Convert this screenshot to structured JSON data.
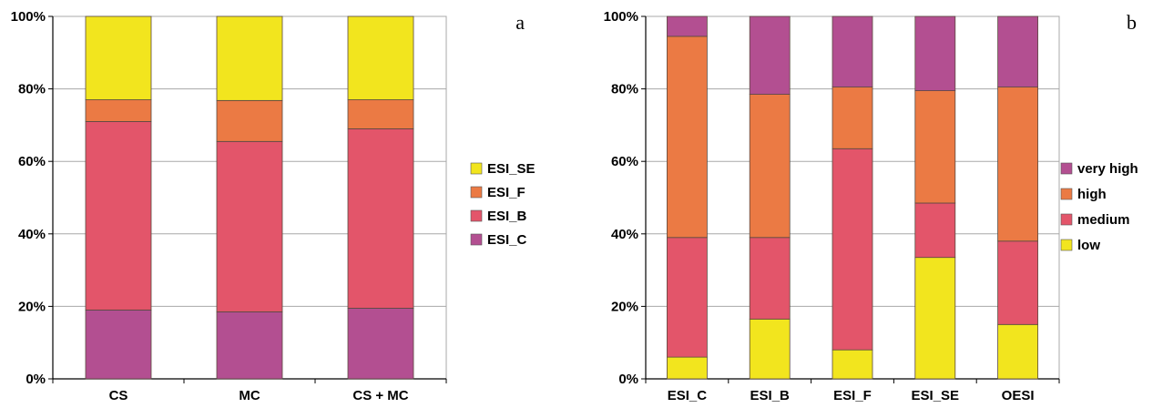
{
  "colors": {
    "yellow": "#f2e51e",
    "orange": "#eb7a44",
    "red": "#e3556a",
    "purple": "#b34f91",
    "grid": "#a8a8a8"
  },
  "chart_data": [
    {
      "type": "bar",
      "stacked": true,
      "panel_label": "a",
      "categories": [
        "CS",
        "MC",
        "CS + MC"
      ],
      "series": [
        {
          "name": "ESI_C",
          "color": "#b34f91",
          "values": [
            19,
            18.5,
            19.5
          ]
        },
        {
          "name": "ESI_B",
          "color": "#e3556a",
          "values": [
            52,
            47,
            49.5
          ]
        },
        {
          "name": "ESI_F",
          "color": "#eb7a44",
          "values": [
            6,
            11.3,
            8
          ]
        },
        {
          "name": "ESI_SE",
          "color": "#f2e51e",
          "values": [
            23,
            23.2,
            23
          ]
        }
      ],
      "legend_order": [
        "ESI_SE",
        "ESI_F",
        "ESI_B",
        "ESI_C"
      ],
      "yticks": [
        "0%",
        "20%",
        "40%",
        "60%",
        "80%",
        "100%"
      ],
      "ylim": [
        0,
        100
      ],
      "grid": true,
      "legend_position": "right"
    },
    {
      "type": "bar",
      "stacked": true,
      "panel_label": "b",
      "categories": [
        "ESI_C",
        "ESI_B",
        "ESI_F",
        "ESI_SE",
        "OESI"
      ],
      "series": [
        {
          "name": "low",
          "color": "#f2e51e",
          "values": [
            6,
            16.5,
            8,
            33.5,
            15
          ]
        },
        {
          "name": "medium",
          "color": "#e3556a",
          "values": [
            33,
            22.5,
            55.5,
            15,
            23
          ]
        },
        {
          "name": "high",
          "color": "#eb7a44",
          "values": [
            55.5,
            39.5,
            17,
            31,
            42.5
          ]
        },
        {
          "name": "very high",
          "color": "#b34f91",
          "values": [
            5.5,
            21.5,
            19.5,
            20.5,
            19.5
          ]
        }
      ],
      "legend_order": [
        "very high",
        "high",
        "medium",
        "low"
      ],
      "yticks": [
        "0%",
        "20%",
        "40%",
        "60%",
        "80%",
        "100%"
      ],
      "ylim": [
        0,
        100
      ],
      "grid": true,
      "legend_position": "right"
    }
  ]
}
